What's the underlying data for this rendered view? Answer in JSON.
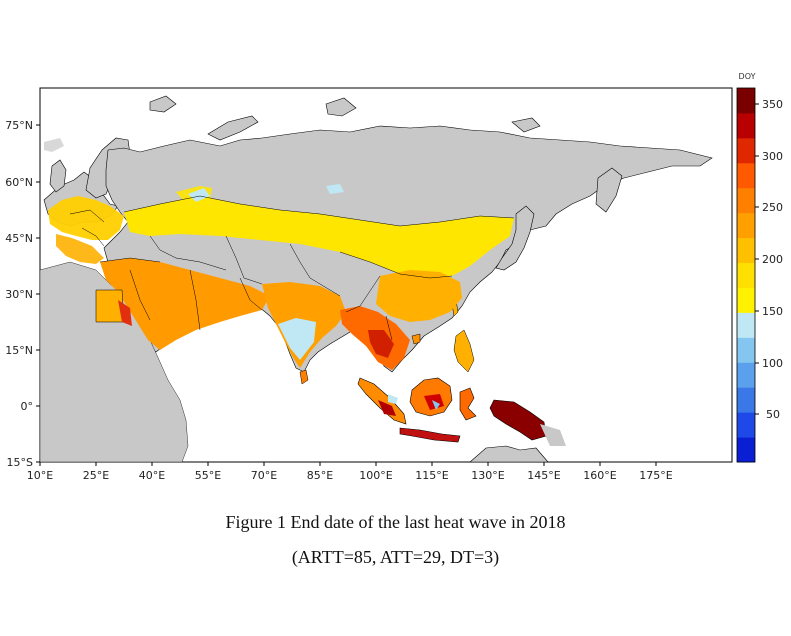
{
  "figure": {
    "colorbar_unit": "DOY",
    "caption_title": "Figure 1  End date of the last heat wave in 2018",
    "caption_params": "(ARTT=85, ATT=29, DT=3)"
  },
  "map": {
    "lon_ticks": [
      "10°E",
      "25°E",
      "40°E",
      "55°E",
      "70°E",
      "85°E",
      "100°E",
      "115°E",
      "130°E",
      "145°E",
      "160°E",
      "175°E"
    ],
    "lat_ticks": [
      "75°N",
      "60°N",
      "45°N",
      "30°N",
      "15°N",
      "0°",
      "15°S"
    ],
    "land_color": "#c8c8c8",
    "ocean_color": "#ffffff"
  },
  "colorbar": {
    "tick_labels": [
      "350",
      "300",
      "250",
      "200",
      "150",
      "100",
      "50"
    ],
    "colors": [
      "#0a1fd4",
      "#1f48e8",
      "#3a78e8",
      "#5aa0ec",
      "#85c6f0",
      "#bfe8f4",
      "#fff200",
      "#ffe000",
      "#ffc000",
      "#ffa000",
      "#ff8000",
      "#ff5a00",
      "#e02800",
      "#b80000",
      "#7a0000"
    ]
  }
}
